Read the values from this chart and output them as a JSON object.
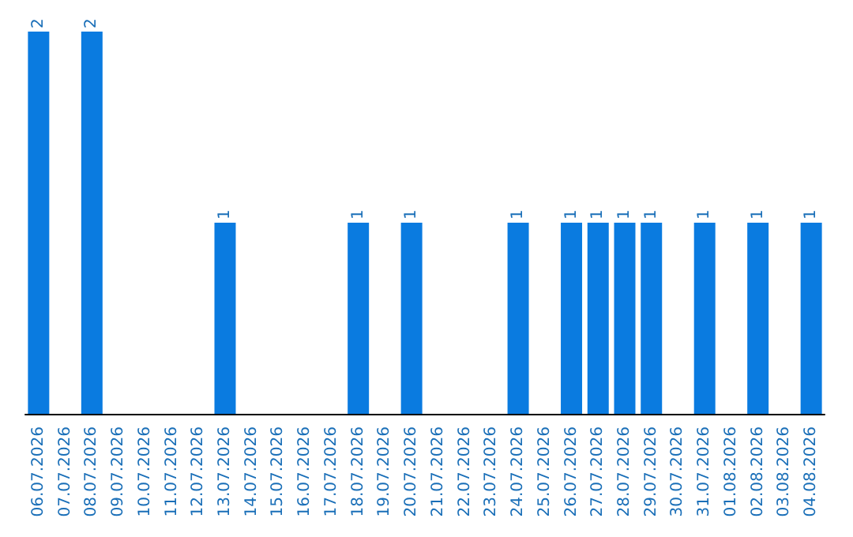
{
  "chart_data": {
    "type": "bar",
    "categories": [
      "06.07.2026",
      "07.07.2026",
      "08.07.2026",
      "09.07.2026",
      "10.07.2026",
      "11.07.2026",
      "12.07.2026",
      "13.07.2026",
      "14.07.2026",
      "15.07.2026",
      "16.07.2026",
      "17.07.2026",
      "18.07.2026",
      "19.07.2026",
      "20.07.2026",
      "21.07.2026",
      "22.07.2026",
      "23.07.2026",
      "24.07.2026",
      "25.07.2026",
      "26.07.2026",
      "27.07.2026",
      "28.07.2026",
      "29.07.2026",
      "30.07.2026",
      "31.07.2026",
      "01.08.2026",
      "02.08.2026",
      "03.08.2026",
      "04.08.2026"
    ],
    "values": [
      2,
      0,
      2,
      0,
      0,
      0,
      0,
      1,
      0,
      0,
      0,
      0,
      1,
      0,
      1,
      0,
      0,
      0,
      1,
      0,
      1,
      1,
      1,
      1,
      0,
      1,
      0,
      1,
      0,
      1
    ],
    "value_labels": [
      "2",
      null,
      "2",
      null,
      null,
      null,
      null,
      "1",
      null,
      null,
      null,
      null,
      "1",
      null,
      "1",
      null,
      null,
      null,
      "1",
      null,
      "1",
      "1",
      "1",
      "1",
      null,
      "1",
      null,
      "1",
      null,
      "1"
    ],
    "color": "#0a7be0"
  }
}
